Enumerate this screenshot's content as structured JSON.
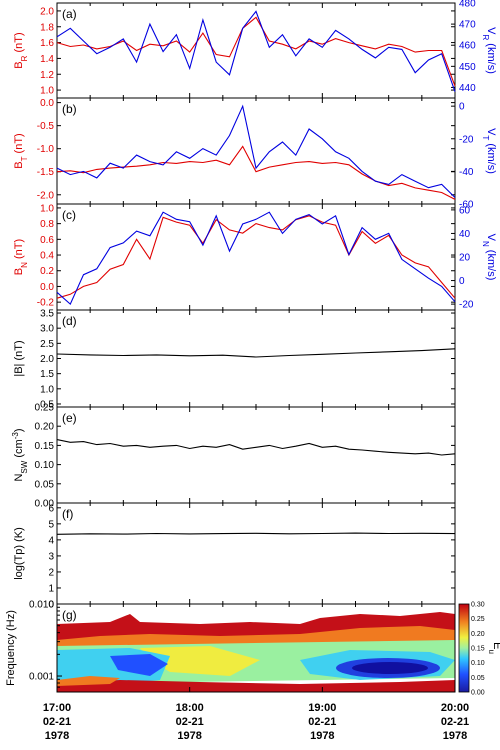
{
  "x_axis": {
    "ticks": [
      {
        "time": "17:00",
        "date": "02-21",
        "year": "1978"
      },
      {
        "time": "18:00",
        "date": "02-21",
        "year": "1978"
      },
      {
        "time": "19:00",
        "date": "02-21",
        "year": "1978"
      },
      {
        "time": "20:00",
        "date": "02-21",
        "year": "1978"
      }
    ]
  },
  "colors": {
    "magnetic": "#e00000",
    "velocity": "#0000e0",
    "scalar": "#000000"
  },
  "colorbar": {
    "label": "E_u",
    "ticks": [
      "0.00",
      "0.05",
      "0.10",
      "0.15",
      "0.20",
      "0.25",
      "0.30"
    ]
  },
  "chart_data": [
    {
      "panel": "(a)",
      "type": "line",
      "ylabel": "B_R (nT)",
      "ylim": [
        0.9,
        2.1
      ],
      "yticks": [
        "1.0",
        "1.2",
        "1.4",
        "1.6",
        "1.8",
        "2.0"
      ],
      "y2label": "V_R (km/s)",
      "y2lim": [
        435,
        480
      ],
      "y2ticks": [
        "440",
        "450",
        "460",
        "470",
        "480"
      ],
      "series": [
        {
          "axis": "left",
          "color": "red",
          "x": [
            0,
            0.1,
            0.2,
            0.3,
            0.4,
            0.5,
            0.6,
            0.7,
            0.8,
            0.9,
            1.0,
            1.1,
            1.2,
            1.3,
            1.4,
            1.5,
            1.6,
            1.7,
            1.8,
            1.9,
            2.0,
            2.1,
            2.2,
            2.3,
            2.4,
            2.5,
            2.6,
            2.7,
            2.8,
            2.9,
            3.0
          ],
          "values": [
            1.6,
            1.55,
            1.57,
            1.52,
            1.55,
            1.62,
            1.5,
            1.58,
            1.56,
            1.62,
            1.48,
            1.72,
            1.45,
            1.42,
            1.78,
            1.92,
            1.62,
            1.58,
            1.52,
            1.62,
            1.58,
            1.65,
            1.6,
            1.56,
            1.52,
            1.58,
            1.55,
            1.48,
            1.5,
            1.5,
            1.05
          ]
        },
        {
          "axis": "right",
          "color": "blue",
          "x": [
            0,
            0.1,
            0.2,
            0.3,
            0.4,
            0.5,
            0.6,
            0.7,
            0.8,
            0.9,
            1.0,
            1.1,
            1.2,
            1.3,
            1.4,
            1.5,
            1.6,
            1.7,
            1.8,
            1.9,
            2.0,
            2.1,
            2.2,
            2.3,
            2.4,
            2.5,
            2.6,
            2.7,
            2.8,
            2.9,
            3.0
          ],
          "values": [
            464,
            468,
            462,
            456,
            459,
            463,
            452,
            470,
            457,
            465,
            449,
            472,
            452,
            446,
            468,
            476,
            459,
            465,
            455,
            463,
            459,
            467,
            463,
            458,
            454,
            459,
            458,
            447,
            453,
            456,
            438
          ]
        }
      ]
    },
    {
      "panel": "(b)",
      "type": "line",
      "ylabel": "B_T (nT)",
      "ylim": [
        -2.2,
        0.1
      ],
      "yticks": [
        "-2.0",
        "-1.5",
        "-1.0",
        "-0.5",
        "0.0"
      ],
      "y2label": "V_T (km/s)",
      "y2lim": [
        -60,
        5
      ],
      "y2ticks": [
        "-60",
        "-40",
        "-20",
        "0"
      ],
      "series": [
        {
          "axis": "left",
          "color": "red",
          "x": [
            0,
            0.1,
            0.2,
            0.3,
            0.4,
            0.5,
            0.6,
            0.7,
            0.8,
            0.9,
            1.0,
            1.1,
            1.2,
            1.3,
            1.4,
            1.5,
            1.6,
            1.7,
            1.8,
            1.9,
            2.0,
            2.1,
            2.2,
            2.3,
            2.4,
            2.5,
            2.6,
            2.7,
            2.8,
            2.9,
            3.0
          ],
          "values": [
            -1.5,
            -1.48,
            -1.52,
            -1.45,
            -1.42,
            -1.4,
            -1.38,
            -1.35,
            -1.3,
            -1.32,
            -1.28,
            -1.3,
            -1.25,
            -1.35,
            -0.95,
            -1.5,
            -1.4,
            -1.35,
            -1.3,
            -1.28,
            -1.32,
            -1.3,
            -1.35,
            -1.55,
            -1.7,
            -1.8,
            -1.75,
            -1.85,
            -1.9,
            -1.95,
            -2.1
          ]
        },
        {
          "axis": "right",
          "color": "blue",
          "x": [
            0,
            0.1,
            0.2,
            0.3,
            0.4,
            0.5,
            0.6,
            0.7,
            0.8,
            0.9,
            1.0,
            1.1,
            1.2,
            1.3,
            1.4,
            1.5,
            1.6,
            1.7,
            1.8,
            1.9,
            2.0,
            2.1,
            2.2,
            2.3,
            2.4,
            2.5,
            2.6,
            2.7,
            2.8,
            2.9,
            3.0
          ],
          "values": [
            -38,
            -42,
            -40,
            -44,
            -35,
            -38,
            -30,
            -34,
            -36,
            -28,
            -32,
            -26,
            -30,
            -18,
            0,
            -38,
            -28,
            -22,
            -30,
            -14,
            -20,
            -28,
            -32,
            -40,
            -46,
            -48,
            -42,
            -46,
            -50,
            -48,
            -56
          ]
        }
      ]
    },
    {
      "panel": "(c)",
      "type": "line",
      "ylabel": "B_N (nT)",
      "ylim": [
        -0.3,
        1.05
      ],
      "yticks": [
        "-0.2",
        "0.0",
        "0.2",
        "0.4",
        "0.6",
        "0.8",
        "1.0"
      ],
      "y2label": "V_N (km/s)",
      "y2lim": [
        -25,
        65
      ],
      "y2ticks": [
        "-20",
        "0",
        "20",
        "40",
        "60"
      ],
      "series": [
        {
          "axis": "left",
          "color": "red",
          "x": [
            0,
            0.1,
            0.2,
            0.3,
            0.4,
            0.5,
            0.6,
            0.7,
            0.8,
            0.9,
            1.0,
            1.1,
            1.2,
            1.3,
            1.4,
            1.5,
            1.6,
            1.7,
            1.8,
            1.9,
            2.0,
            2.1,
            2.2,
            2.3,
            2.4,
            2.5,
            2.6,
            2.7,
            2.8,
            2.9,
            3.0
          ],
          "values": [
            -0.15,
            -0.1,
            0.0,
            0.05,
            0.22,
            0.28,
            0.6,
            0.35,
            0.88,
            0.82,
            0.78,
            0.55,
            0.85,
            0.72,
            0.68,
            0.8,
            0.75,
            0.72,
            0.85,
            0.9,
            0.82,
            0.78,
            0.4,
            0.7,
            0.55,
            0.65,
            0.4,
            0.3,
            0.25,
            0.05,
            -0.15
          ]
        },
        {
          "axis": "right",
          "color": "blue",
          "x": [
            0,
            0.1,
            0.2,
            0.3,
            0.4,
            0.5,
            0.6,
            0.7,
            0.8,
            0.9,
            1.0,
            1.1,
            1.2,
            1.3,
            1.4,
            1.5,
            1.6,
            1.7,
            1.8,
            1.9,
            2.0,
            2.1,
            2.2,
            2.3,
            2.4,
            2.5,
            2.6,
            2.7,
            2.8,
            2.9,
            3.0
          ],
          "values": [
            -10,
            -20,
            5,
            10,
            28,
            32,
            42,
            38,
            58,
            52,
            50,
            30,
            55,
            25,
            48,
            52,
            58,
            40,
            52,
            56,
            48,
            55,
            22,
            45,
            35,
            40,
            18,
            10,
            2,
            -5,
            -18
          ]
        }
      ]
    },
    {
      "panel": "(d)",
      "type": "line",
      "ylabel": "|B| (nT)",
      "ylim": [
        0.4,
        3.6
      ],
      "yticks": [
        "0.5",
        "1.0",
        "1.5",
        "2.0",
        "2.5",
        "3.0",
        "3.5"
      ],
      "series": [
        {
          "axis": "left",
          "color": "black",
          "x": [
            0,
            0.25,
            0.5,
            0.75,
            1.0,
            1.25,
            1.5,
            1.75,
            2.0,
            2.25,
            2.5,
            2.75,
            3.0
          ],
          "values": [
            2.15,
            2.12,
            2.1,
            2.12,
            2.09,
            2.11,
            2.05,
            2.1,
            2.14,
            2.18,
            2.22,
            2.26,
            2.32
          ]
        }
      ]
    },
    {
      "panel": "(e)",
      "type": "line",
      "ylabel": "N_SW (cm^-3)",
      "ylim": [
        0.0,
        0.25
      ],
      "yticks": [
        "0.00",
        "0.05",
        "0.10",
        "0.15",
        "0.20",
        "0.25"
      ],
      "series": [
        {
          "axis": "left",
          "color": "black",
          "x": [
            0,
            0.1,
            0.2,
            0.3,
            0.4,
            0.5,
            0.6,
            0.7,
            0.8,
            0.9,
            1.0,
            1.1,
            1.2,
            1.3,
            1.4,
            1.5,
            1.6,
            1.7,
            1.8,
            1.9,
            2.0,
            2.1,
            2.2,
            2.3,
            2.4,
            2.5,
            2.6,
            2.7,
            2.8,
            2.9,
            3.0
          ],
          "values": [
            0.165,
            0.158,
            0.16,
            0.152,
            0.155,
            0.148,
            0.15,
            0.145,
            0.148,
            0.15,
            0.142,
            0.148,
            0.145,
            0.152,
            0.14,
            0.145,
            0.15,
            0.142,
            0.148,
            0.155,
            0.145,
            0.148,
            0.14,
            0.138,
            0.135,
            0.132,
            0.13,
            0.128,
            0.13,
            0.125,
            0.128
          ]
        }
      ]
    },
    {
      "panel": "(f)",
      "type": "line",
      "ylabel": "log(Tp) (K)",
      "ylim": [
        0,
        6.3
      ],
      "yticks": [
        "0",
        "1",
        "2",
        "3",
        "4",
        "5",
        "6"
      ],
      "series": [
        {
          "axis": "left",
          "color": "black",
          "x": [
            0,
            0.25,
            0.5,
            0.75,
            1.0,
            1.25,
            1.5,
            1.75,
            2.0,
            2.25,
            2.5,
            2.75,
            3.0
          ],
          "values": [
            4.35,
            4.38,
            4.36,
            4.4,
            4.37,
            4.39,
            4.41,
            4.38,
            4.4,
            4.42,
            4.4,
            4.41,
            4.39
          ]
        }
      ]
    },
    {
      "panel": "(g)",
      "type": "heatmap",
      "ylabel": "Frequency (Hz)",
      "yscale": "log",
      "ylim": [
        0.0006,
        0.01
      ],
      "yticks": [
        "0.001",
        "0.010"
      ],
      "colorbar_range": [
        0.0,
        0.3
      ]
    }
  ]
}
